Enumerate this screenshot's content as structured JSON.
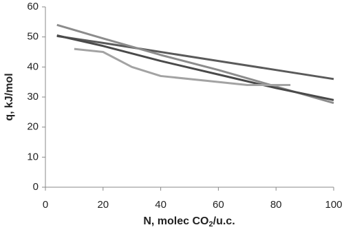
{
  "chart_data": {
    "type": "line",
    "x_label": [
      "N, molec CO",
      "2",
      "/u.c."
    ],
    "y_label": "q, kJ/mol",
    "xlim": [
      0,
      100
    ],
    "xticks": [
      0,
      20,
      40,
      60,
      80,
      100
    ],
    "ylim": [
      0,
      60
    ],
    "yticks": [
      0,
      10,
      20,
      30,
      40,
      50,
      60
    ],
    "grid": false,
    "series": [
      {
        "color": "#5a5a5a",
        "x": [
          4,
          20,
          40,
          60,
          80,
          100
        ],
        "values": [
          50.3,
          48,
          45,
          42,
          39,
          36
        ]
      },
      {
        "color": "#8c8c8c",
        "x": [
          4,
          20,
          40,
          60,
          80,
          100
        ],
        "values": [
          54,
          49.5,
          44,
          39,
          33.5,
          28
        ]
      },
      {
        "color": "#4a4a4a",
        "x": [
          4,
          20,
          40,
          60,
          80,
          100
        ],
        "values": [
          50.5,
          47,
          42,
          37.5,
          33,
          29
        ]
      },
      {
        "color": "#a3a3a3",
        "x": [
          10,
          20,
          30,
          40,
          60,
          70,
          85
        ],
        "values": [
          46,
          45,
          40,
          37,
          35,
          34,
          34
        ]
      }
    ]
  }
}
